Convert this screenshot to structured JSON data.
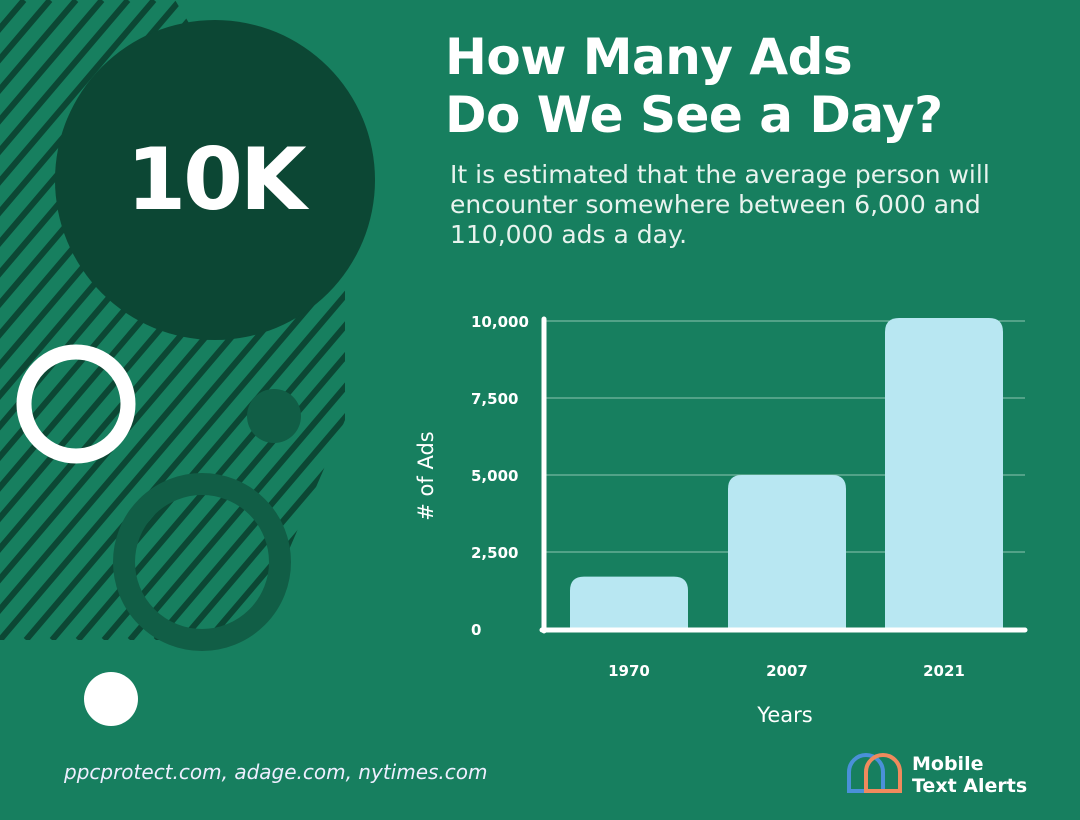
{
  "headline": {
    "title_line1": "How Many Ads",
    "title_line2": "Do We See a Day?",
    "subtitle": "It is estimated that the average person will encounter somewhere between 6,000 and 110,000 ads a day.",
    "big_number": "10K"
  },
  "source": "ppcprotect.com, adage.com, nytimes.com",
  "brand": {
    "line1": "Mobile",
    "line2": "Text Alerts"
  },
  "colors": {
    "background": "#177f5f",
    "dark_circle": "#0c4734",
    "bar": "#b8e7f2",
    "axis": "#ffffff",
    "logo_blue": "#4a90d9",
    "logo_orange": "#f08a5d"
  },
  "chart_data": {
    "type": "bar",
    "categories": [
      "1970",
      "2007",
      "2021"
    ],
    "values": [
      1700,
      5000,
      10000
    ],
    "xlabel": "Years",
    "ylabel": "# of Ads",
    "ylim": [
      0,
      10000
    ],
    "yticks": [
      0,
      2500,
      5000,
      7500,
      10000
    ],
    "ytick_labels": [
      "0",
      "2,500",
      "5,000",
      "7,500",
      "10,000"
    ],
    "grid": true
  }
}
